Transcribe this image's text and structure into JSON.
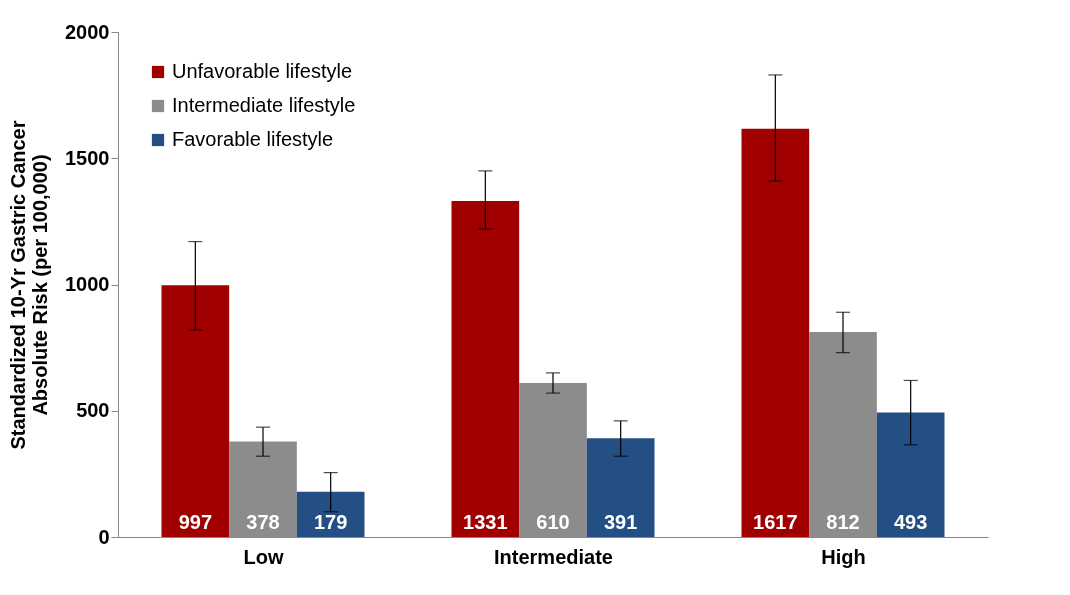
{
  "chart_data": {
    "type": "bar",
    "ylabel": "Standardized 10-Yr Gastric Cancer\nAbsolute Risk (per 100,000)",
    "categories": [
      "Low",
      "Intermediate",
      "High"
    ],
    "series": [
      {
        "name": "Unfavorable lifestyle",
        "color": "#a00000",
        "values": [
          997,
          1331,
          1617
        ],
        "errors": [
          [
            820,
            1170
          ],
          [
            1220,
            1450
          ],
          [
            1410,
            1830
          ]
        ]
      },
      {
        "name": "Intermediate lifestyle",
        "color": "#8c8c8c",
        "values": [
          378,
          610,
          812
        ],
        "errors": [
          [
            320,
            435
          ],
          [
            570,
            650
          ],
          [
            730,
            890
          ]
        ]
      },
      {
        "name": "Favorable lifestyle",
        "color": "#234f84",
        "values": [
          179,
          391,
          493
        ],
        "errors": [
          [
            100,
            255
          ],
          [
            320,
            460
          ],
          [
            365,
            620
          ]
        ]
      }
    ],
    "ylim": [
      0,
      2000
    ],
    "yticks": [
      0,
      500,
      1000,
      1500,
      2000
    ],
    "data_labels": true,
    "legend": "top left",
    "grid": false
  }
}
